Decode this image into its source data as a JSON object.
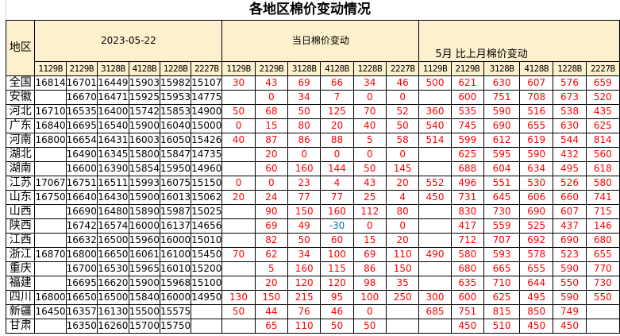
{
  "title": "各地区棉价变动情况",
  "header": {
    "region_label": "地区",
    "date": "2023-05-22",
    "daily_change_label": "当日棉价变动",
    "monthly_change_label": "5月 比上月棉价变动",
    "grades": [
      "1129B",
      "2129B",
      "3128B",
      "4128B",
      "1228B",
      "2227B"
    ]
  },
  "colors": {
    "header_bg": "#fdf0cd",
    "positive": "#ff0000",
    "negative": "#0070c0"
  },
  "rows": [
    {
      "region": "全国",
      "price": [
        "16814",
        "16701",
        "16449",
        "15903",
        "15982",
        "15107"
      ],
      "daily": [
        "30",
        "43",
        "69",
        "66",
        "34",
        "46"
      ],
      "monthly": [
        "500",
        "621",
        "630",
        "607",
        "576",
        "659"
      ]
    },
    {
      "region": "安徽",
      "price": [
        "",
        "16670",
        "16471",
        "15925",
        "15953",
        "14775"
      ],
      "daily": [
        "",
        "0",
        "34",
        "7",
        "0",
        "0"
      ],
      "monthly": [
        "",
        "600",
        "751",
        "708",
        "673",
        "520"
      ]
    },
    {
      "region": "河北",
      "price": [
        "16710",
        "16535",
        "16400",
        "15742",
        "15853",
        "14900"
      ],
      "daily": [
        "50",
        "68",
        "50",
        "125",
        "70",
        "52"
      ],
      "monthly": [
        "360",
        "535",
        "590",
        "516",
        "538",
        "435"
      ]
    },
    {
      "region": "广东",
      "price": [
        "16840",
        "16695",
        "16540",
        "15900",
        "16040",
        "15000"
      ],
      "daily": [
        "0",
        "15",
        "80",
        "20",
        "40",
        "50"
      ],
      "monthly": [
        "540",
        "745",
        "690",
        "655",
        "630",
        "625"
      ]
    },
    {
      "region": "河南",
      "price": [
        "16800",
        "16654",
        "16431",
        "16003",
        "16050",
        "15426"
      ],
      "daily": [
        "40",
        "87",
        "86",
        "88",
        "5",
        "58"
      ],
      "monthly": [
        "514",
        "599",
        "612",
        "619",
        "544",
        "814"
      ]
    },
    {
      "region": "湖北",
      "price": [
        "",
        "16490",
        "16345",
        "15800",
        "15847",
        "14735"
      ],
      "daily": [
        "",
        "20",
        "0",
        "0",
        "0",
        "0"
      ],
      "monthly": [
        "",
        "625",
        "595",
        "590",
        "432",
        "560"
      ]
    },
    {
      "region": "湖南",
      "price": [
        "",
        "16600",
        "16390",
        "15854",
        "15950",
        "14960"
      ],
      "daily": [
        "",
        "60",
        "160",
        "144",
        "50",
        "145"
      ],
      "monthly": [
        "",
        "688",
        "604",
        "634",
        "495",
        "618"
      ]
    },
    {
      "region": "江苏",
      "price": [
        "17067",
        "16751",
        "16511",
        "15993",
        "16075",
        "15150"
      ],
      "daily": [
        "0",
        "0",
        "23",
        "4",
        "43",
        "20"
      ],
      "monthly": [
        "552",
        "496",
        "551",
        "530",
        "526",
        "580"
      ]
    },
    {
      "region": "山东",
      "price": [
        "16750",
        "16640",
        "16430",
        "15900",
        "16013",
        "15062"
      ],
      "daily": [
        "20",
        "24",
        "77",
        "77",
        "25",
        "4"
      ],
      "monthly": [
        "450",
        "731",
        "645",
        "606",
        "660",
        "741"
      ]
    },
    {
      "region": "山西",
      "price": [
        "",
        "16690",
        "16480",
        "15890",
        "15987",
        "15025"
      ],
      "daily": [
        "",
        "90",
        "150",
        "160",
        "112",
        "80"
      ],
      "monthly": [
        "",
        "830",
        "730",
        "690",
        "607",
        "715"
      ]
    },
    {
      "region": "陕西",
      "price": [
        "",
        "16742",
        "16574",
        "16000",
        "16137",
        "14656"
      ],
      "daily": [
        "",
        "69",
        "49",
        "-30",
        "0",
        "0"
      ],
      "monthly": [
        "",
        "417",
        "559",
        "525",
        "437",
        "146"
      ]
    },
    {
      "region": "江西",
      "price": [
        "",
        "16632",
        "16500",
        "15960",
        "16000",
        "15010"
      ],
      "daily": [
        "",
        "82",
        "50",
        "60",
        "15",
        "20"
      ],
      "monthly": [
        "",
        "712",
        "707",
        "692",
        "690",
        "680"
      ]
    },
    {
      "region": "浙江",
      "price": [
        "16870",
        "16800",
        "16650",
        "16061",
        "16100",
        "15450"
      ],
      "daily": [
        "70",
        "62",
        "34",
        "100",
        "69",
        "110"
      ],
      "monthly": [
        "490",
        "580",
        "593",
        "578",
        "523",
        "655"
      ]
    },
    {
      "region": "重庆",
      "price": [
        "",
        "16700",
        "16530",
        "15965",
        "16010",
        "15200"
      ],
      "daily": [
        "",
        "5",
        "160",
        "115",
        "86",
        "150"
      ],
      "monthly": [
        "",
        "680",
        "665",
        "655",
        "590",
        "770"
      ]
    },
    {
      "region": "福建",
      "price": [
        "",
        "16695",
        "16620",
        "15900",
        "15968",
        "15100"
      ],
      "daily": [
        "",
        "20",
        "120",
        "120",
        "98",
        "35"
      ],
      "monthly": [
        "",
        "635",
        "710",
        "644",
        "550",
        "730"
      ]
    },
    {
      "region": "四川",
      "price": [
        "16800",
        "16650",
        "16500",
        "15840",
        "16000",
        "14950"
      ],
      "daily": [
        "130",
        "150",
        "215",
        "95",
        "100",
        "250"
      ],
      "monthly": [
        "300",
        "600",
        "625",
        "495",
        "590",
        "550"
      ]
    },
    {
      "region": "新疆",
      "price": [
        "16450",
        "16357",
        "16130",
        "15500",
        "15575",
        ""
      ],
      "daily": [
        "50",
        "44",
        "76",
        "46",
        "0",
        ""
      ],
      "monthly": [
        "685",
        "751",
        "815",
        "850",
        "749",
        ""
      ]
    },
    {
      "region": "甘肃",
      "price": [
        "",
        "16350",
        "16260",
        "15700",
        "15750",
        ""
      ],
      "daily": [
        "",
        "65",
        "110",
        "50",
        "50",
        ""
      ],
      "monthly": [
        "",
        "450",
        "510",
        "450",
        "450",
        ""
      ]
    }
  ]
}
